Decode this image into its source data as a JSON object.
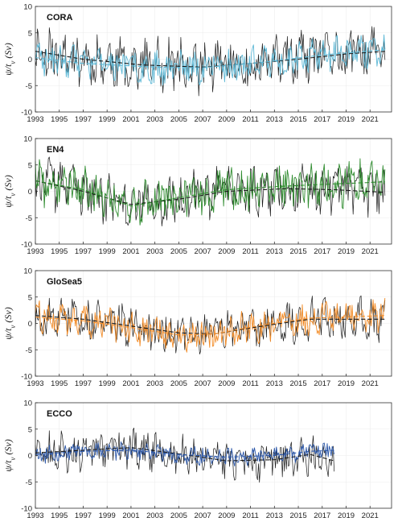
{
  "chart_data": [
    {
      "type": "line",
      "title": "CORA",
      "ylabel": "ψ/t_v (Sv)",
      "xlim": [
        1993,
        2022.8
      ],
      "ylim": [
        -10,
        10
      ],
      "yticks": [
        -10,
        -5,
        0,
        5,
        10
      ],
      "xticks": [
        1993,
        1995,
        1997,
        1999,
        2001,
        2003,
        2005,
        2007,
        2009,
        2011,
        2013,
        2015,
        2017,
        2019,
        2021
      ],
      "grid": true,
      "series": [
        {
          "color": "#1a1a1a",
          "style": "solid",
          "trend": [
            [
              1993,
              1.5
            ],
            [
              1997,
              0
            ],
            [
              2002,
              -1.1
            ],
            [
              2007,
              -1.5
            ],
            [
              2011,
              -0.8
            ],
            [
              2015,
              0
            ],
            [
              2019,
              1.0
            ],
            [
              2022.3,
              1.5
            ]
          ],
          "amp": 4.2,
          "range": [
            1993,
            2022.3
          ],
          "seed": 11
        },
        {
          "color": "#5db8d6",
          "style": "solid",
          "trend": [
            [
              1993,
              0.3
            ],
            [
              1997,
              -0.8
            ],
            [
              2003,
              -1.5
            ],
            [
              2007,
              -1.6
            ],
            [
              2012,
              -0.6
            ],
            [
              2017,
              0.8
            ],
            [
              2022.3,
              1.8
            ]
          ],
          "amp": 2.6,
          "range": [
            1993,
            2022.3
          ],
          "seed": 23
        },
        {
          "color": "#1a1a1a",
          "style": "dashed",
          "trend": [
            [
              1993,
              1.5
            ],
            [
              1997,
              0
            ],
            [
              2002,
              -1.1
            ],
            [
              2007,
              -1.5
            ],
            [
              2011,
              -0.8
            ],
            [
              2015,
              0
            ],
            [
              2019,
              1.0
            ],
            [
              2022.3,
              1.5
            ]
          ],
          "amp": 0,
          "range": [
            1993,
            2022.3
          ],
          "seed": 0
        },
        {
          "color": "#5db8d6",
          "style": "dashed",
          "trend": [
            [
              1993,
              0.3
            ],
            [
              1997,
              -0.8
            ],
            [
              2003,
              -1.5
            ],
            [
              2007,
              -1.6
            ],
            [
              2012,
              -0.6
            ],
            [
              2017,
              0.8
            ],
            [
              2022.3,
              1.8
            ]
          ],
          "amp": 0,
          "range": [
            1993,
            2022.3
          ],
          "seed": 0
        }
      ]
    },
    {
      "type": "line",
      "title": "EN4",
      "ylabel": "ψ/t_v (Sv)",
      "xlim": [
        1993,
        2022.8
      ],
      "ylim": [
        -10,
        10
      ],
      "yticks": [
        -10,
        -5,
        0,
        5,
        10
      ],
      "xticks": [
        1993,
        1995,
        1997,
        1999,
        2001,
        2003,
        2005,
        2007,
        2009,
        2011,
        2013,
        2015,
        2017,
        2019,
        2021
      ],
      "grid": true,
      "series": [
        {
          "color": "#1a1a1a",
          "style": "solid",
          "trend": [
            [
              1993,
              2.0
            ],
            [
              1997,
              0
            ],
            [
              2001,
              -2.5
            ],
            [
              2005,
              -1.5
            ],
            [
              2009,
              0
            ],
            [
              2014,
              0.5
            ],
            [
              2018,
              0.3
            ],
            [
              2022.3,
              -0.2
            ]
          ],
          "amp": 4.0,
          "range": [
            1993,
            2022.3
          ],
          "seed": 37
        },
        {
          "color": "#2e8b2e",
          "style": "solid",
          "trend": [
            [
              1993,
              2.0
            ],
            [
              1997,
              0.3
            ],
            [
              2001,
              -2.8
            ],
            [
              2005,
              -1.2
            ],
            [
              2009,
              0.3
            ],
            [
              2014,
              1.0
            ],
            [
              2018,
              1.4
            ],
            [
              2022.3,
              1.8
            ]
          ],
          "amp": 3.6,
          "range": [
            1993,
            2022.3
          ],
          "seed": 41
        },
        {
          "color": "#1a1a1a",
          "style": "dashed",
          "trend": [
            [
              1993,
              2.0
            ],
            [
              1997,
              0
            ],
            [
              2001,
              -2.5
            ],
            [
              2005,
              -1.5
            ],
            [
              2009,
              0
            ],
            [
              2014,
              0.5
            ],
            [
              2018,
              0.3
            ],
            [
              2022.3,
              -0.2
            ]
          ],
          "amp": 0,
          "range": [
            1993,
            2022.3
          ],
          "seed": 0
        },
        {
          "color": "#2e8b2e",
          "style": "dashed",
          "trend": [
            [
              1993,
              2.0
            ],
            [
              1997,
              0.3
            ],
            [
              2001,
              -2.8
            ],
            [
              2005,
              -1.2
            ],
            [
              2009,
              0.3
            ],
            [
              2014,
              1.0
            ],
            [
              2018,
              1.4
            ],
            [
              2022.3,
              1.8
            ]
          ],
          "amp": 0,
          "range": [
            1993,
            2022.3
          ],
          "seed": 0
        }
      ]
    },
    {
      "type": "line",
      "title": "GloSea5",
      "ylabel": "ψ/t_v (Sv)",
      "xlim": [
        1993,
        2022.8
      ],
      "ylim": [
        -10,
        10
      ],
      "yticks": [
        -10,
        -5,
        0,
        5,
        10
      ],
      "xticks": [
        1993,
        1995,
        1997,
        1999,
        2001,
        2003,
        2005,
        2007,
        2009,
        2011,
        2013,
        2015,
        2017,
        2019,
        2021
      ],
      "grid": true,
      "series": [
        {
          "color": "#1a1a1a",
          "style": "solid",
          "trend": [
            [
              1993,
              1.5
            ],
            [
              1997,
              0.8
            ],
            [
              2001,
              -0.5
            ],
            [
              2005,
              -1.8
            ],
            [
              2008,
              -2.0
            ],
            [
              2012,
              -0.5
            ],
            [
              2016,
              0.8
            ],
            [
              2022.3,
              0.8
            ]
          ],
          "amp": 3.4,
          "range": [
            1993,
            2022.3
          ],
          "seed": 53
        },
        {
          "color": "#f28c28",
          "style": "solid",
          "trend": [
            [
              1993,
              1.2
            ],
            [
              1997,
              0.5
            ],
            [
              2001,
              -0.8
            ],
            [
              2005,
              -2.2
            ],
            [
              2008,
              -2.0
            ],
            [
              2012,
              -0.3
            ],
            [
              2016,
              1.0
            ],
            [
              2022.3,
              1.5
            ]
          ],
          "amp": 2.6,
          "range": [
            1993,
            2022.3
          ],
          "seed": 59
        },
        {
          "color": "#1a1a1a",
          "style": "dashed",
          "trend": [
            [
              1993,
              1.5
            ],
            [
              1997,
              0.8
            ],
            [
              2001,
              -0.5
            ],
            [
              2005,
              -1.8
            ],
            [
              2008,
              -2.0
            ],
            [
              2012,
              -0.5
            ],
            [
              2016,
              0.8
            ],
            [
              2022.3,
              0.8
            ]
          ],
          "amp": 0,
          "range": [
            1993,
            2022.3
          ],
          "seed": 0
        },
        {
          "color": "#f28c28",
          "style": "dashed",
          "trend": [
            [
              1993,
              1.2
            ],
            [
              1997,
              0.5
            ],
            [
              2001,
              -0.8
            ],
            [
              2005,
              -2.2
            ],
            [
              2008,
              -2.0
            ],
            [
              2012,
              -0.3
            ],
            [
              2016,
              1.0
            ],
            [
              2022.3,
              1.5
            ]
          ],
          "amp": 0,
          "range": [
            1993,
            2022.3
          ],
          "seed": 0
        }
      ]
    },
    {
      "type": "line",
      "title": "ECCO",
      "ylabel": "ψ/t_v (Sv)",
      "xlim": [
        1993,
        2022.8
      ],
      "ylim": [
        -10,
        10
      ],
      "yticks": [
        -10,
        -5,
        0,
        5,
        10
      ],
      "xticks": [
        1993,
        1995,
        1997,
        1999,
        2001,
        2003,
        2005,
        2007,
        2009,
        2011,
        2013,
        2015,
        2017,
        2019,
        2021
      ],
      "grid": true,
      "series": [
        {
          "color": "#1a1a1a",
          "style": "solid",
          "trend": [
            [
              1993,
              0.5
            ],
            [
              1997,
              1.0
            ],
            [
              2001,
              1.5
            ],
            [
              2005,
              0.3
            ],
            [
              2009,
              -1.0
            ],
            [
              2013,
              -0.8
            ],
            [
              2016,
              0.2
            ],
            [
              2018.0,
              -1.0
            ]
          ],
          "amp": 3.2,
          "range": [
            1993,
            2018.0
          ],
          "seed": 71
        },
        {
          "color": "#2a56a8",
          "style": "solid",
          "trend": [
            [
              1993,
              0.2
            ],
            [
              1997,
              0.8
            ],
            [
              2001,
              1.0
            ],
            [
              2005,
              0.2
            ],
            [
              2009,
              -0.3
            ],
            [
              2013,
              0
            ],
            [
              2016,
              0.8
            ],
            [
              2018.0,
              1.0
            ]
          ],
          "amp": 1.4,
          "range": [
            1993,
            2018.0
          ],
          "seed": 79
        },
        {
          "color": "#1a1a1a",
          "style": "dashed",
          "trend": [
            [
              1993,
              0.5
            ],
            [
              1997,
              1.0
            ],
            [
              2001,
              1.5
            ],
            [
              2005,
              0.3
            ],
            [
              2009,
              -1.0
            ],
            [
              2013,
              -0.8
            ],
            [
              2016,
              0.2
            ],
            [
              2018.0,
              -1.0
            ]
          ],
          "amp": 0,
          "range": [
            1993,
            2018.0
          ],
          "seed": 0
        },
        {
          "color": "#2a56a8",
          "style": "dashed",
          "trend": [
            [
              1993,
              0.2
            ],
            [
              1997,
              0.8
            ],
            [
              2001,
              1.0
            ],
            [
              2005,
              0.2
            ],
            [
              2009,
              -0.3
            ],
            [
              2013,
              0
            ],
            [
              2016,
              0.8
            ],
            [
              2018.0,
              1.0
            ]
          ],
          "amp": 0,
          "range": [
            1993,
            2018.0
          ],
          "seed": 0
        }
      ]
    }
  ]
}
